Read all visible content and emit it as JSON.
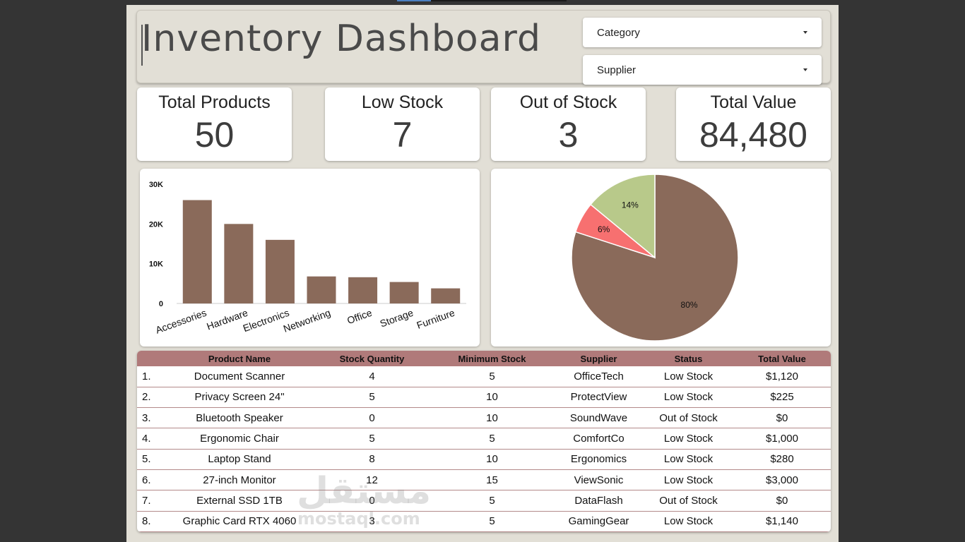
{
  "header": {
    "title": "Inventory Dashboard",
    "filters": [
      {
        "label": "Category"
      },
      {
        "label": "Supplier"
      }
    ]
  },
  "kpis": [
    {
      "label": "Total Products",
      "value": "50"
    },
    {
      "label": "Low Stock",
      "value": "7"
    },
    {
      "label": "Out of Stock",
      "value": "3"
    },
    {
      "label": "Total Value",
      "value": "84,480"
    }
  ],
  "chart_data": [
    {
      "type": "bar",
      "categories": [
        "Accessories",
        "Hardware",
        "Electronics",
        "Networking",
        "Office",
        "Storage",
        "Furniture"
      ],
      "values": [
        26000,
        20000,
        16000,
        6800,
        6600,
        5400,
        3800
      ],
      "ylim": [
        0,
        30000
      ],
      "yticks": [
        "0",
        "10K",
        "20K",
        "30K"
      ],
      "ytick_values": [
        0,
        10000,
        20000,
        30000
      ],
      "title": "",
      "xlabel": "",
      "ylabel": "",
      "grid": false,
      "color": "#8a6a5a"
    },
    {
      "type": "pie",
      "slices": [
        {
          "value": 80,
          "label": "80%",
          "color": "#8a6a5a"
        },
        {
          "value": 6,
          "label": "6%",
          "color": "#f77070"
        },
        {
          "value": 14,
          "label": "14%",
          "color": "#b8c98a"
        }
      ]
    }
  ],
  "table": {
    "columns": [
      "",
      "Product Name",
      "Stock Quantity",
      "Minimum Stock",
      "Supplier",
      "Status",
      "Total Value"
    ],
    "rows": [
      [
        "1.",
        "Document Scanner",
        "4",
        "5",
        "OfficeTech",
        "Low Stock",
        "$1,120"
      ],
      [
        "2.",
        "Privacy Screen 24\"",
        "5",
        "10",
        "ProtectView",
        "Low Stock",
        "$225"
      ],
      [
        "3.",
        "Bluetooth Speaker",
        "0",
        "10",
        "SoundWave",
        "Out of Stock",
        "$0"
      ],
      [
        "4.",
        "Ergonomic Chair",
        "5",
        "5",
        "ComfortCo",
        "Low Stock",
        "$1,000"
      ],
      [
        "5.",
        "Laptop Stand",
        "8",
        "10",
        "Ergonomics",
        "Low Stock",
        "$280"
      ],
      [
        "6.",
        "27-inch Monitor",
        "12",
        "15",
        "ViewSonic",
        "Low Stock",
        "$3,000"
      ],
      [
        "7.",
        "External SSD 1TB",
        "0",
        "5",
        "DataFlash",
        "Out of Stock",
        "$0"
      ],
      [
        "8.",
        "Graphic Card RTX 4060",
        "3",
        "5",
        "GamingGear",
        "Low Stock",
        "$1,140"
      ]
    ]
  },
  "watermark": {
    "arabic": "مستقل",
    "latin": "mostaql.com"
  }
}
